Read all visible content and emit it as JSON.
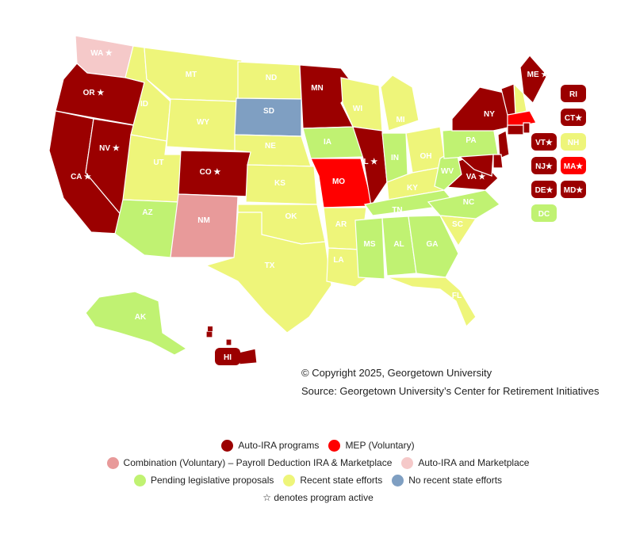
{
  "colors": {
    "auto_ira": "#9b0000",
    "mep": "#ff0000",
    "combination": "#e89a9a",
    "auto_ira_marketplace": "#f5c9c9",
    "pending": "#c0f272",
    "recent": "#eef57a",
    "none": "#7f9fc2",
    "border": "#ffffff"
  },
  "states": [
    {
      "abbr": "WA",
      "status": "auto_ira_marketplace",
      "active": true
    },
    {
      "abbr": "OR",
      "status": "auto_ira",
      "active": true
    },
    {
      "abbr": "CA",
      "status": "auto_ira",
      "active": true
    },
    {
      "abbr": "NV",
      "status": "auto_ira",
      "active": true
    },
    {
      "abbr": "ID",
      "status": "recent",
      "active": false
    },
    {
      "abbr": "MT",
      "status": "recent",
      "active": false
    },
    {
      "abbr": "WY",
      "status": "recent",
      "active": false
    },
    {
      "abbr": "UT",
      "status": "recent",
      "active": false
    },
    {
      "abbr": "AZ",
      "status": "pending",
      "active": false
    },
    {
      "abbr": "CO",
      "status": "auto_ira",
      "active": true
    },
    {
      "abbr": "NM",
      "status": "combination",
      "active": false
    },
    {
      "abbr": "ND",
      "status": "recent",
      "active": false
    },
    {
      "abbr": "SD",
      "status": "none",
      "active": false
    },
    {
      "abbr": "NE",
      "status": "recent",
      "active": false
    },
    {
      "abbr": "KS",
      "status": "recent",
      "active": false
    },
    {
      "abbr": "OK",
      "status": "recent",
      "active": false
    },
    {
      "abbr": "TX",
      "status": "recent",
      "active": false
    },
    {
      "abbr": "MN",
      "status": "auto_ira",
      "active": false
    },
    {
      "abbr": "IA",
      "status": "pending",
      "active": false
    },
    {
      "abbr": "MO",
      "status": "mep",
      "active": false
    },
    {
      "abbr": "AR",
      "status": "recent",
      "active": false
    },
    {
      "abbr": "LA",
      "status": "recent",
      "active": false
    },
    {
      "abbr": "WI",
      "status": "recent",
      "active": false
    },
    {
      "abbr": "IL",
      "status": "auto_ira",
      "active": true
    },
    {
      "abbr": "MI",
      "status": "recent",
      "active": false
    },
    {
      "abbr": "IN",
      "status": "pending",
      "active": false
    },
    {
      "abbr": "OH",
      "status": "recent",
      "active": false
    },
    {
      "abbr": "KY",
      "status": "recent",
      "active": false
    },
    {
      "abbr": "TN",
      "status": "pending",
      "active": false
    },
    {
      "abbr": "MS",
      "status": "pending",
      "active": false
    },
    {
      "abbr": "AL",
      "status": "pending",
      "active": false
    },
    {
      "abbr": "GA",
      "status": "pending",
      "active": false
    },
    {
      "abbr": "FL",
      "status": "recent",
      "active": false
    },
    {
      "abbr": "SC",
      "status": "recent",
      "active": false
    },
    {
      "abbr": "NC",
      "status": "pending",
      "active": false
    },
    {
      "abbr": "VA",
      "status": "auto_ira",
      "active": true
    },
    {
      "abbr": "WV",
      "status": "pending",
      "active": false
    },
    {
      "abbr": "PA",
      "status": "pending",
      "active": false
    },
    {
      "abbr": "NY",
      "status": "auto_ira",
      "active": false
    },
    {
      "abbr": "ME",
      "status": "auto_ira",
      "active": true
    },
    {
      "abbr": "AK",
      "status": "pending",
      "active": false
    },
    {
      "abbr": "HI",
      "status": "auto_ira",
      "active": false
    },
    {
      "abbr": "RI",
      "status": "auto_ira",
      "active": false
    },
    {
      "abbr": "CT",
      "status": "auto_ira",
      "active": true
    },
    {
      "abbr": "VT",
      "status": "auto_ira",
      "active": true
    },
    {
      "abbr": "NH",
      "status": "recent",
      "active": false
    },
    {
      "abbr": "NJ",
      "status": "auto_ira",
      "active": true
    },
    {
      "abbr": "MA",
      "status": "mep",
      "active": true
    },
    {
      "abbr": "DE",
      "status": "auto_ira",
      "active": true
    },
    {
      "abbr": "MD",
      "status": "auto_ira",
      "active": true
    },
    {
      "abbr": "DC",
      "status": "pending",
      "active": false
    },
    {
      "abbr": "",
      "status": "auto_ira",
      "active": false
    },
    {
      "abbr": "",
      "status": "recent",
      "active": false
    }
  ],
  "star": "★",
  "credits": {
    "copyright": "© Copyright 2025, Georgetown University",
    "source": "Source: Georgetown University’s Center for Retirement Initiatives"
  },
  "legend": {
    "rows": [
      [
        {
          "key": "auto_ira",
          "label": "Auto-IRA programs"
        },
        {
          "key": "mep",
          "label": "MEP (Voluntary)"
        }
      ],
      [
        {
          "key": "combination",
          "label": "Combination (Voluntary) – Payroll Deduction IRA & Marketplace"
        },
        {
          "key": "auto_ira_marketplace",
          "label": "Auto-IRA and Marketplace"
        }
      ],
      [
        {
          "key": "pending",
          "label": "Pending legislative proposals"
        },
        {
          "key": "recent",
          "label": "Recent state efforts"
        },
        {
          "key": "none",
          "label": "No recent state efforts"
        }
      ]
    ],
    "note": "☆ denotes program active"
  }
}
